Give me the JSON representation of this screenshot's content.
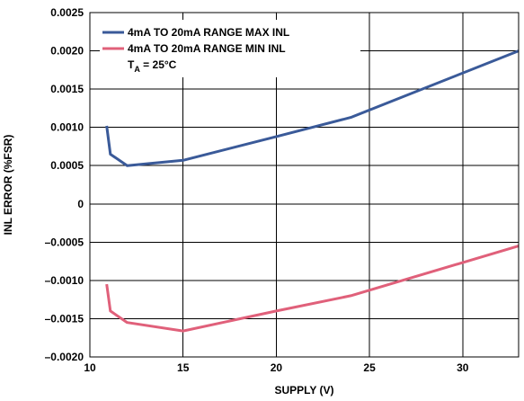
{
  "chart_data": {
    "type": "line",
    "xlabel": "SUPPLY (V)",
    "ylabel": "INL ERROR (%FSR)",
    "xlim": [
      10,
      33
    ],
    "ylim": [
      -0.002,
      0.0025
    ],
    "x_ticks": [
      10,
      15,
      20,
      25,
      30
    ],
    "x_tick_labels": [
      "10",
      "15",
      "20",
      "25",
      "30"
    ],
    "y_ticks": [
      0.0025,
      0.002,
      0.0015,
      0.001,
      0.0005,
      0,
      -0.0005,
      -0.001,
      -0.0015,
      -0.002
    ],
    "y_tick_labels": [
      "0.0025",
      "0.0020",
      "0.0015",
      "0.0010",
      "0.0005",
      "0",
      "–0.0005",
      "–0.0010",
      "–0.0015",
      "–0.0020"
    ],
    "grid": true,
    "legend_position": "top-left",
    "annotation": {
      "main": "T",
      "sub": "A",
      "rest": " = 25°C"
    },
    "series": [
      {
        "name": "4mA TO 20mA RANGE MAX INL",
        "color": "#3a5a99",
        "x": [
          10.9,
          11.1,
          12,
          15,
          20,
          24,
          33
        ],
        "y": [
          0.00102,
          0.00065,
          0.0005,
          0.00057,
          0.00088,
          0.00113,
          0.002
        ]
      },
      {
        "name": "4mA TO 20mA RANGE MIN INL",
        "color": "#e0607a",
        "x": [
          10.9,
          11.1,
          12,
          15,
          20,
          24,
          33
        ],
        "y": [
          -0.00105,
          -0.0014,
          -0.00155,
          -0.00166,
          -0.0014,
          -0.0012,
          -0.00055
        ]
      }
    ]
  }
}
